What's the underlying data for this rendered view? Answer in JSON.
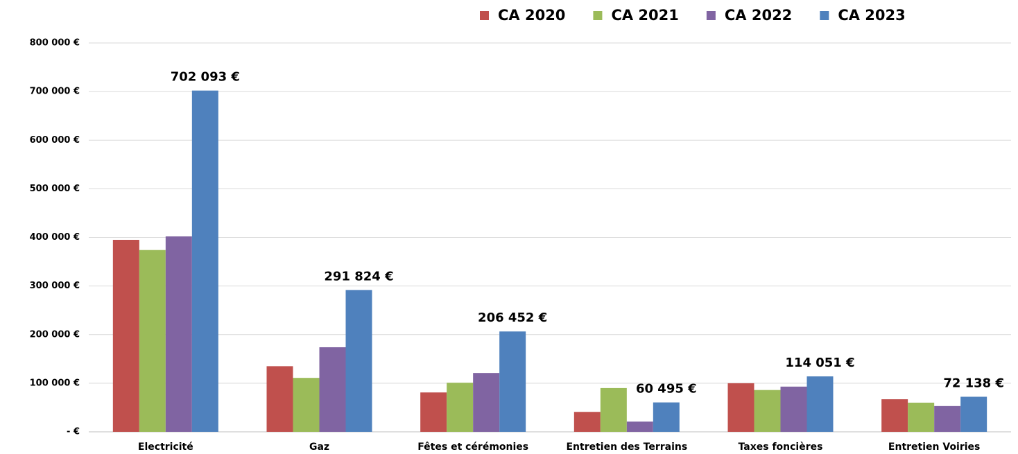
{
  "chart_data": {
    "type": "bar",
    "categories": [
      "Electricité",
      "Gaz",
      "Fêtes et cérémonies",
      "Entretien des Terrains",
      "Taxes foncières",
      "Entretien Voiries"
    ],
    "series": [
      {
        "name": "CA 2020",
        "color": "#c0504d",
        "values": [
          395000,
          135000,
          81000,
          41000,
          100000,
          67000
        ]
      },
      {
        "name": "CA 2021",
        "color": "#9bbb59",
        "values": [
          374000,
          111000,
          101000,
          90000,
          86000,
          60000
        ]
      },
      {
        "name": "CA 2022",
        "color": "#8064a2",
        "values": [
          402000,
          174000,
          121000,
          21000,
          93000,
          53000
        ]
      },
      {
        "name": "CA 2023",
        "color": "#4f81bd",
        "values": [
          702093,
          291824,
          206452,
          60495,
          114051,
          72138
        ],
        "value_labels": [
          "702 093 €",
          "291 824 €",
          "206 452 €",
          "60 495 €",
          "114 051 €",
          "72 138 €"
        ]
      }
    ],
    "ylim": [
      0,
      800000
    ],
    "yticks": [
      {
        "value": 0,
        "label": "- €"
      },
      {
        "value": 100000,
        "label": "100 000 €"
      },
      {
        "value": 200000,
        "label": "200 000 €"
      },
      {
        "value": 300000,
        "label": "300 000 €"
      },
      {
        "value": 400000,
        "label": "400 000 €"
      },
      {
        "value": 500000,
        "label": "500 000 €"
      },
      {
        "value": 600000,
        "label": "600 000 €"
      },
      {
        "value": 700000,
        "label": "700 000 €"
      },
      {
        "value": 800000,
        "label": "800 000 €"
      }
    ],
    "grid": true,
    "legend": "top"
  }
}
